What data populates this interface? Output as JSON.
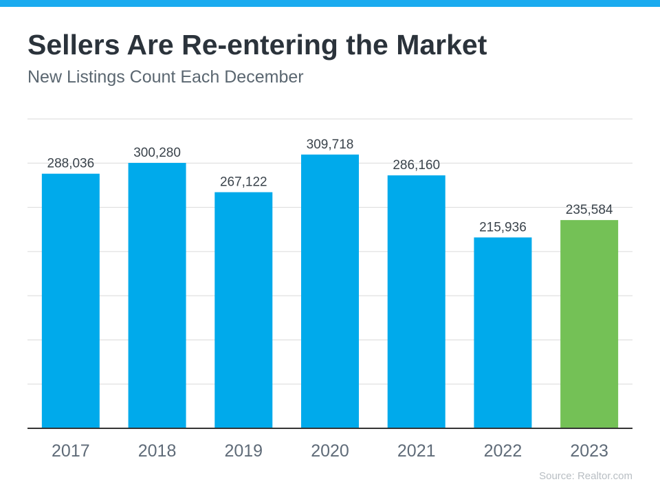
{
  "header": {
    "title": "Sellers Are Re-entering the Market",
    "subtitle": "New Listings Count Each December"
  },
  "source": "Source: Realtor.com",
  "colors": {
    "top_bar": "#1aabef",
    "bar": "#00aaeb",
    "highlight_bar": "#74c156"
  },
  "chart_data": {
    "type": "bar",
    "title": "Sellers Are Re-entering the Market",
    "subtitle": "New Listings Count Each December",
    "categories": [
      "2017",
      "2018",
      "2019",
      "2020",
      "2021",
      "2022",
      "2023"
    ],
    "values": [
      288036,
      300280,
      267122,
      309718,
      286160,
      215936,
      235584
    ],
    "labels": [
      "288,036",
      "300,280",
      "267,122",
      "309,718",
      "286,160",
      "215,936",
      "235,584"
    ],
    "highlight": [
      "2023"
    ],
    "ylim": [
      0,
      350000
    ],
    "grid": true,
    "xlabel": "",
    "ylabel": ""
  }
}
